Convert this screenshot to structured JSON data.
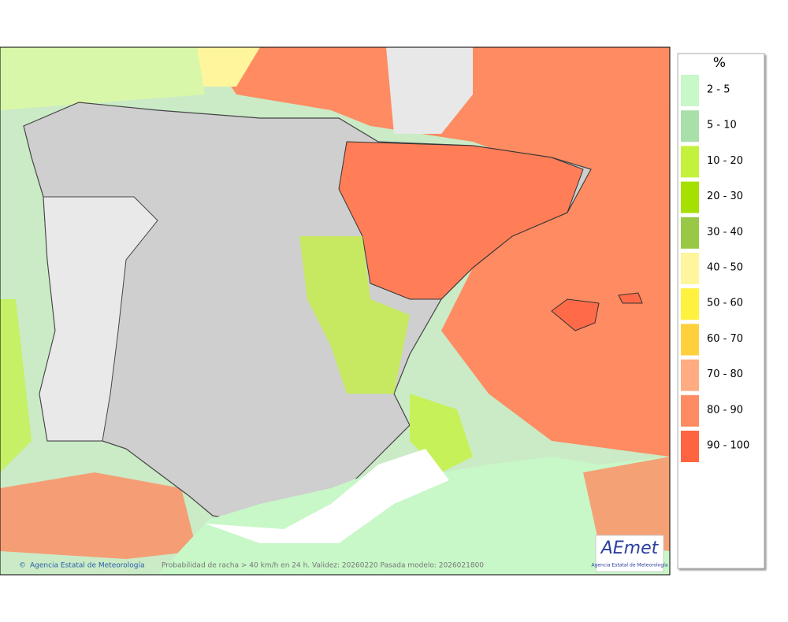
{
  "legend": {
    "title": "%",
    "items": [
      {
        "label": "2 - 5",
        "color": "#c8f7c8"
      },
      {
        "label": "5 - 10",
        "color": "#a9dfa9"
      },
      {
        "label": "10 - 20",
        "color": "#c4f23c"
      },
      {
        "label": "20 - 30",
        "color": "#a6e000"
      },
      {
        "label": "30 - 40",
        "color": "#99c846"
      },
      {
        "label": "40 - 50",
        "color": "#fff59c"
      },
      {
        "label": "50 - 60",
        "color": "#fff23e"
      },
      {
        "label": "60 - 70",
        "color": "#ffd03e"
      },
      {
        "label": "70 - 80",
        "color": "#ffac82"
      },
      {
        "label": "80 - 90",
        "color": "#ff8b62"
      },
      {
        "label": "90 - 100",
        "color": "#ff6440"
      }
    ]
  },
  "footer": {
    "credit": "Agencia Estatal de Meteorología",
    "caption": "Probabilidad de racha > 40 km/h en 24 h. Validez: 20260220 Pasada modelo: 2026021800"
  },
  "logo": {
    "name": "AEmet",
    "subtitle": "Agencia Estatal de Meteorología"
  }
}
